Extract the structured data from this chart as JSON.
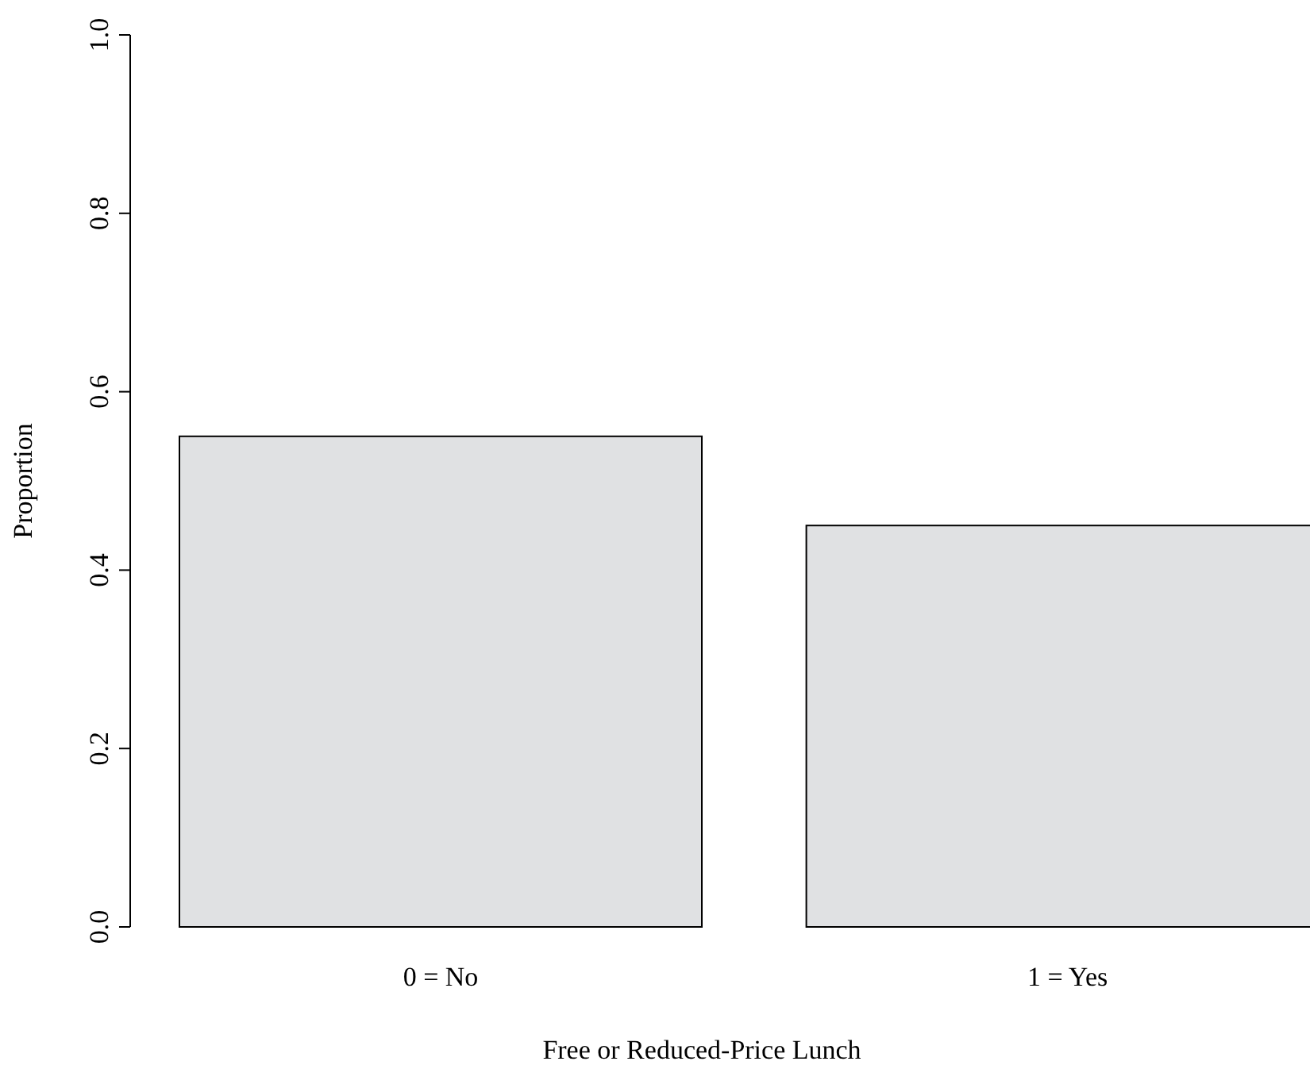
{
  "chart_data": {
    "type": "bar",
    "xlabel": "Free or Reduced-Price Lunch",
    "ylabel": "Proportion",
    "categories": [
      "0 = No",
      "1 = Yes"
    ],
    "values": [
      0.55,
      0.45
    ],
    "color": "#e0e1e3",
    "ylim": [
      0,
      1
    ],
    "yticks": [
      {
        "value": 0,
        "label": "0.0"
      },
      {
        "value": 0.2,
        "label": "0.2"
      },
      {
        "value": 0.4,
        "label": "0.4"
      },
      {
        "value": 0.6,
        "label": "0.6"
      },
      {
        "value": 0.8,
        "label": "0.8"
      },
      {
        "value": 1,
        "label": "1.0"
      }
    ],
    "grid": false
  }
}
